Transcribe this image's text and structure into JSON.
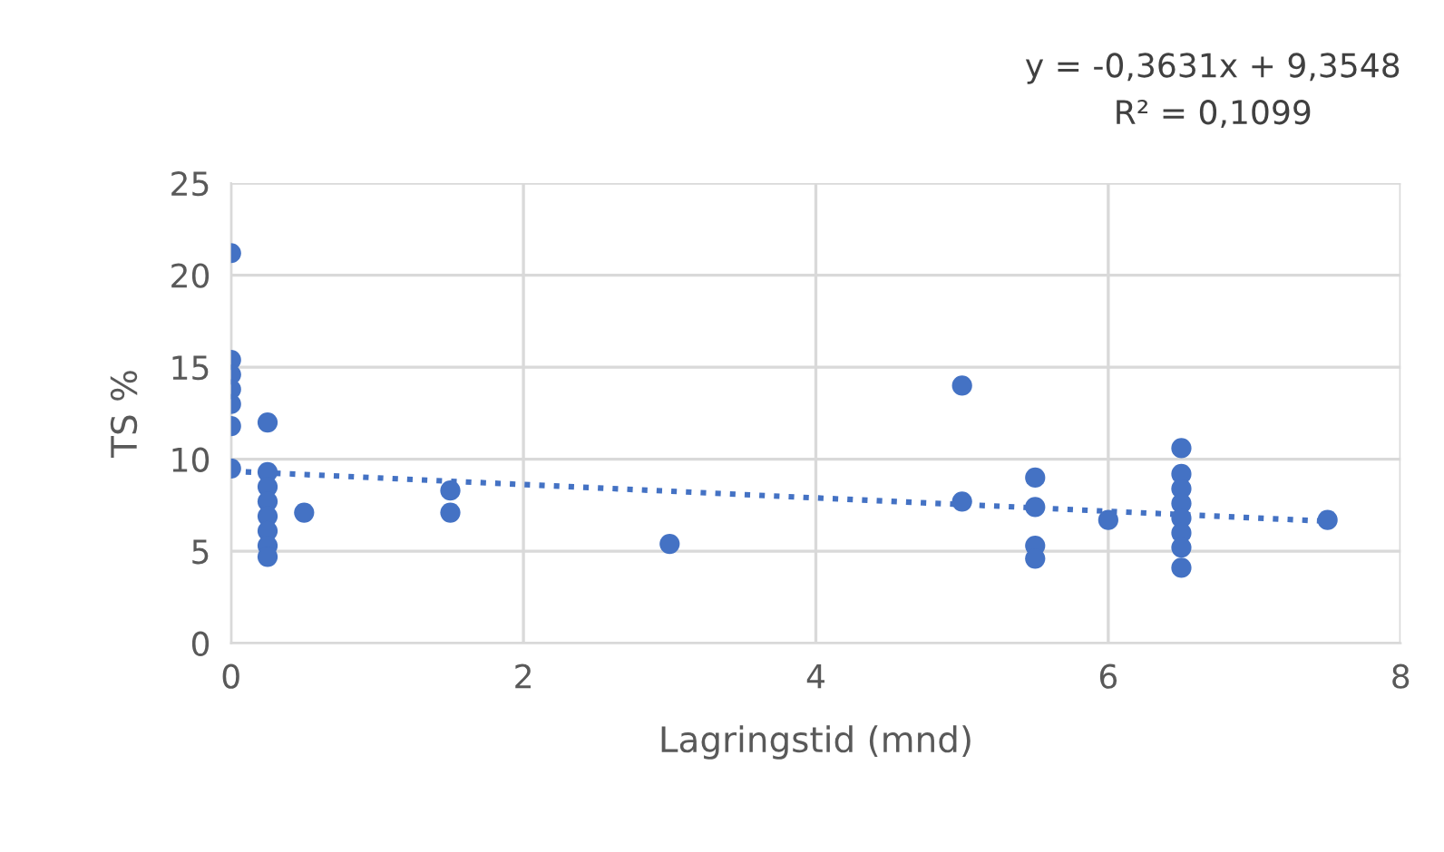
{
  "chart_data": {
    "type": "scatter",
    "xlabel": "Lagringstid (mnd)",
    "ylabel": "TS %",
    "xlim": [
      0,
      8
    ],
    "xticks": [
      0,
      2,
      4,
      6,
      8
    ],
    "ylim": [
      0,
      25
    ],
    "yticks": [
      0,
      5,
      10,
      15,
      20,
      25
    ],
    "grid": true,
    "marker": "circle",
    "annotations": [
      "y = -0,3631x + 9,3548",
      "R² = 0,1099"
    ],
    "series": [
      {
        "color": "#4472c4",
        "x": [
          0,
          0,
          0,
          0,
          0,
          0,
          0,
          0.25,
          0.25,
          0.25,
          0.25,
          0.25,
          0.25,
          0.25,
          0.25,
          0.5,
          1.5,
          1.5,
          3,
          5,
          5,
          5.5,
          5.5,
          5.5,
          5.5,
          6,
          6.5,
          6.5,
          6.5,
          6.5,
          6.5,
          6.5,
          6.5,
          6.5,
          7.5
        ],
        "values": [
          21.2,
          15.4,
          14.6,
          13.8,
          13.0,
          11.8,
          9.5,
          12.0,
          9.3,
          8.5,
          7.7,
          6.9,
          6.1,
          5.3,
          4.7,
          7.1,
          8.3,
          7.1,
          5.4,
          14.0,
          7.7,
          9.0,
          7.4,
          5.3,
          4.6,
          6.7,
          10.6,
          9.2,
          8.4,
          7.6,
          6.8,
          6.0,
          5.2,
          4.1,
          6.7
        ]
      },
      {
        "type": "line",
        "marker": "none",
        "line_style": "dotted",
        "color": "#4472c4",
        "x": [
          0,
          7.5
        ],
        "values": [
          9.35,
          6.63
        ]
      }
    ]
  }
}
